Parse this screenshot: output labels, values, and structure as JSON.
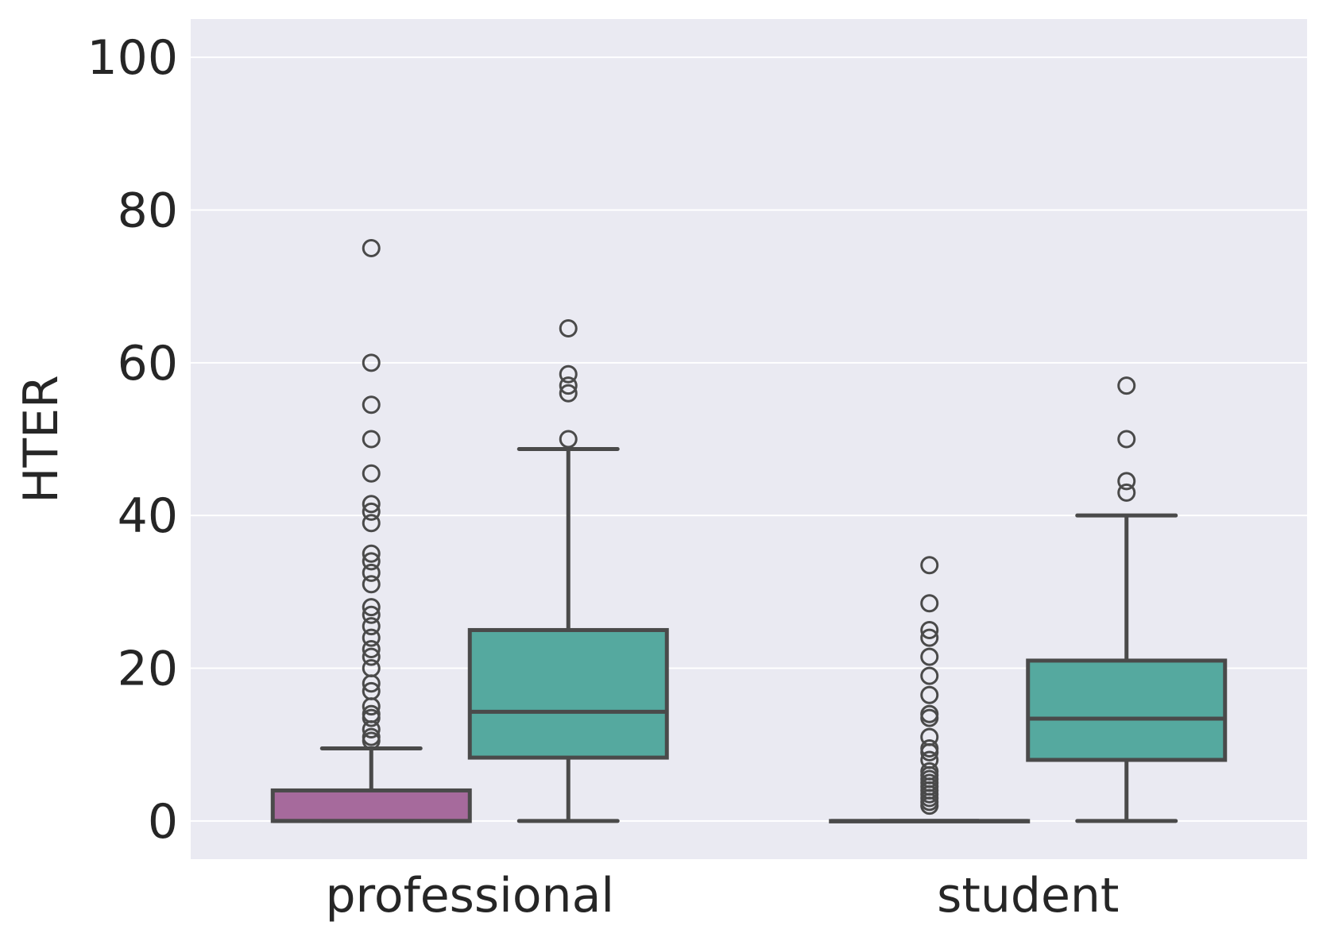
{
  "chart_data": {
    "type": "box",
    "title": "",
    "xlabel": "",
    "ylabel": "HTER",
    "categories": [
      "professional",
      "student"
    ],
    "ylim": [
      -5,
      105
    ],
    "yticks": [
      0,
      20,
      40,
      60,
      80,
      100
    ],
    "grid": true,
    "legend": "none",
    "background_color": "#eaeaf2",
    "grid_color": "#ffffff",
    "line_color": "#4a4a4a",
    "series": [
      {
        "color": "#a66a9c",
        "boxes": [
          {
            "category": "professional",
            "whisker_low": 0,
            "q1": 0,
            "median": 0,
            "q3": 4,
            "whisker_high": 9.5,
            "outliers": [
              75,
              60,
              54.5,
              50,
              45.5,
              41.5,
              40.5,
              39,
              35,
              34,
              32.5,
              31,
              28,
              27,
              25.5,
              24,
              22.5,
              21.5,
              20,
              18,
              17,
              15,
              14,
              13.5,
              12,
              11,
              10.5
            ]
          },
          {
            "category": "student",
            "whisker_low": 0,
            "q1": 0,
            "median": 0,
            "q3": 0,
            "whisker_high": 0,
            "outliers": [
              33.5,
              28.5,
              25,
              24,
              21.5,
              19,
              16.5,
              14,
              13.5,
              11,
              9.5,
              9,
              8,
              6.5,
              6,
              5.5,
              5,
              4.5,
              4,
              3.5,
              3,
              2.5,
              2
            ]
          }
        ]
      },
      {
        "color": "#55a99f",
        "boxes": [
          {
            "category": "professional",
            "whisker_low": 0,
            "q1": 8.3,
            "median": 14.3,
            "q3": 25,
            "whisker_high": 48.7,
            "outliers": [
              64.5,
              58.5,
              57,
              56,
              50
            ]
          },
          {
            "category": "student",
            "whisker_low": 0,
            "q1": 8,
            "median": 13.4,
            "q3": 21,
            "whisker_high": 40,
            "outliers": [
              57,
              50,
              44.5,
              43
            ]
          }
        ]
      }
    ]
  }
}
